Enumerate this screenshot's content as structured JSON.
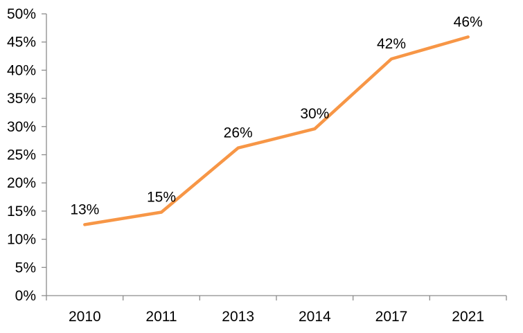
{
  "chart_data": {
    "type": "line",
    "title": "",
    "xlabel": "",
    "ylabel": "",
    "categories": [
      "2010",
      "2011",
      "2013",
      "2014",
      "2017",
      "2021"
    ],
    "values": [
      13,
      15,
      26,
      30,
      42,
      46
    ],
    "plotted_values": [
      12.6,
      14.8,
      26.2,
      29.6,
      42.0,
      45.9
    ],
    "data_labels": [
      "13%",
      "15%",
      "26%",
      "30%",
      "42%",
      "46%"
    ],
    "y_ticks": [
      "0%",
      "5%",
      "10%",
      "15%",
      "20%",
      "25%",
      "30%",
      "35%",
      "40%",
      "45%",
      "50%"
    ],
    "y_tick_values": [
      0,
      5,
      10,
      15,
      20,
      25,
      30,
      35,
      40,
      45,
      50
    ],
    "ylim": [
      0,
      50
    ],
    "grid": false,
    "legend": "none",
    "colors": {
      "line": "#F79646",
      "axis": "#8C8C8C",
      "tick_label": "#000000",
      "data_label": "#000000",
      "background": "#FFFFFF"
    }
  }
}
